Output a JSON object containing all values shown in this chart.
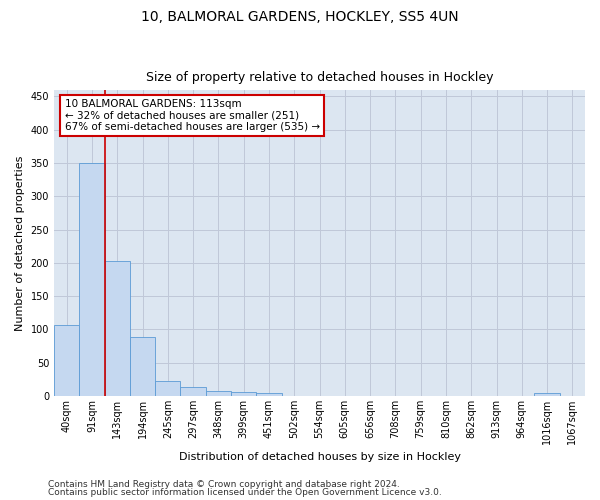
{
  "title1": "10, BALMORAL GARDENS, HOCKLEY, SS5 4UN",
  "title2": "Size of property relative to detached houses in Hockley",
  "xlabel": "Distribution of detached houses by size in Hockley",
  "ylabel": "Number of detached properties",
  "categories": [
    "40sqm",
    "91sqm",
    "143sqm",
    "194sqm",
    "245sqm",
    "297sqm",
    "348sqm",
    "399sqm",
    "451sqm",
    "502sqm",
    "554sqm",
    "605sqm",
    "656sqm",
    "708sqm",
    "759sqm",
    "810sqm",
    "862sqm",
    "913sqm",
    "964sqm",
    "1016sqm",
    "1067sqm"
  ],
  "values": [
    107,
    350,
    203,
    88,
    22,
    13,
    8,
    6,
    4,
    0,
    0,
    0,
    0,
    0,
    0,
    0,
    0,
    0,
    0,
    4,
    0
  ],
  "bar_color": "#c5d8f0",
  "bar_edge_color": "#5b9bd5",
  "vline_x_index": 1,
  "vline_color": "#cc0000",
  "annotation_text": "10 BALMORAL GARDENS: 113sqm\n← 32% of detached houses are smaller (251)\n67% of semi-detached houses are larger (535) →",
  "annotation_box_color": "#ffffff",
  "annotation_box_edge": "#cc0000",
  "ylim": [
    0,
    460
  ],
  "yticks": [
    0,
    50,
    100,
    150,
    200,
    250,
    300,
    350,
    400,
    450
  ],
  "grid_color": "#c0c8d8",
  "background_color": "#dce6f1",
  "footer1": "Contains HM Land Registry data © Crown copyright and database right 2024.",
  "footer2": "Contains public sector information licensed under the Open Government Licence v3.0.",
  "title_fontsize": 10,
  "subtitle_fontsize": 9,
  "axis_label_fontsize": 8,
  "tick_fontsize": 7,
  "footer_fontsize": 6.5,
  "annotation_fontsize": 7.5
}
